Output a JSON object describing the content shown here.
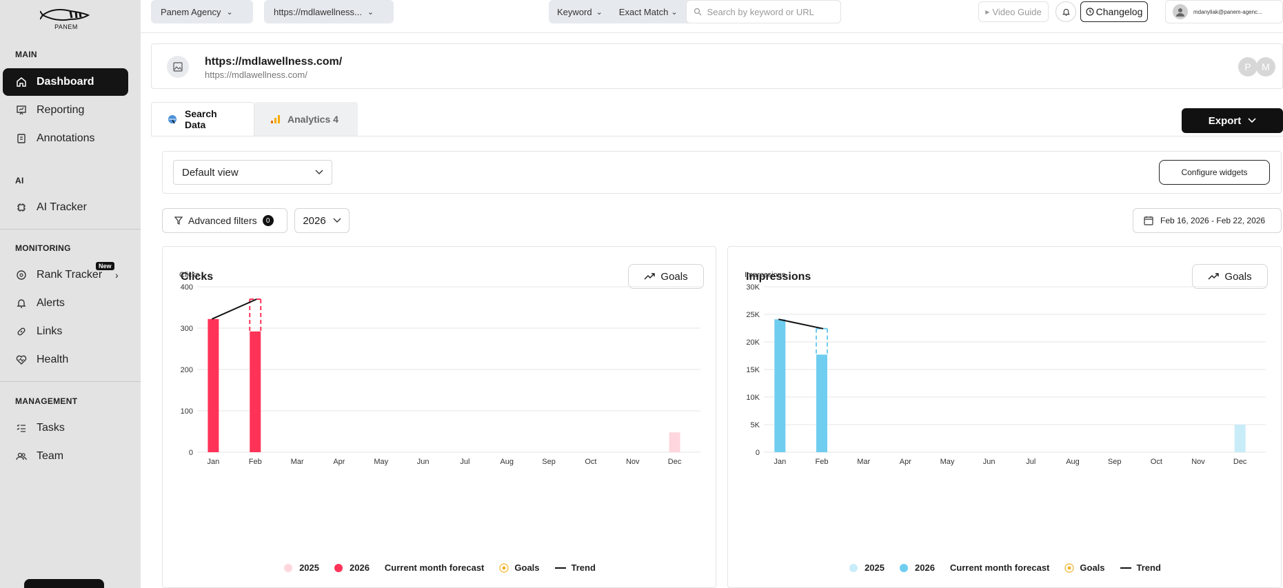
{
  "sidebar": {
    "logo_text": "PANEM",
    "sections": {
      "main": "MAIN",
      "ai": "AI",
      "monitoring": "MONITORING",
      "management": "MANAGEMENT"
    },
    "items": {
      "dashboard": "Dashboard",
      "reporting": "Reporting",
      "annotations": "Annotations",
      "ai_tracker": "AI Tracker",
      "rank_tracker": "Rank Tracker",
      "alerts": "Alerts",
      "links": "Links",
      "health": "Health",
      "tasks": "Tasks",
      "team": "Team"
    },
    "new_badge": "New"
  },
  "topbar": {
    "agency": "Panem Agency",
    "site_select": "https://mdlawellness...",
    "keyword_mode": "Keyword",
    "match_mode": "Exact Match",
    "search_placeholder": "Search by keyword or URL",
    "video_guide": "Video Guide",
    "changelog": "Changelog",
    "user_email": "mdanyliak@panem-agenc..."
  },
  "site": {
    "title": "https://mdlawellness.com/",
    "subtitle": "https://mdlawellness.com/",
    "initials": [
      "P",
      "M"
    ]
  },
  "tabs": {
    "search_data": "Search Data",
    "analytics": "Analytics 4"
  },
  "export_label": "Export",
  "view_select": "Default view",
  "configure_widgets": "Configure widgets",
  "filters": {
    "advanced_label": "Advanced filters",
    "advanced_count": "0",
    "year": "2026",
    "date_range": "Feb 16, 2026 - Feb 22, 2026"
  },
  "colors": {
    "clicks_2026": "#ff3358",
    "clicks_2025": "#ffd6de",
    "impressions_2026": "#6fcdf0",
    "impressions_2025": "#c9ecf9",
    "goals": "#f0b429"
  },
  "chart_data": [
    {
      "type": "bar",
      "title": "Clicks",
      "ylabel": "Clicks",
      "ylim": [
        0,
        400
      ],
      "yticks": [
        "0",
        "100",
        "200",
        "300",
        "400"
      ],
      "categories": [
        "Jan",
        "Feb",
        "Mar",
        "Apr",
        "May",
        "Jun",
        "Jul",
        "Aug",
        "Sep",
        "Oct",
        "Nov",
        "Dec"
      ],
      "series": [
        {
          "name": "2025",
          "values": [
            null,
            null,
            null,
            null,
            null,
            null,
            null,
            null,
            null,
            null,
            null,
            48
          ]
        },
        {
          "name": "2026",
          "values": [
            322,
            292,
            null,
            null,
            null,
            null,
            null,
            null,
            null,
            null,
            null,
            null
          ]
        }
      ],
      "forecast": {
        "month": "Feb",
        "value": 370
      },
      "trend": [
        322,
        370
      ],
      "legend": [
        "2025",
        "2026",
        "Current month forecast",
        "Goals",
        "Trend"
      ],
      "goals_label": "Goals"
    },
    {
      "type": "bar",
      "title": "Impressions",
      "ylabel": "Impressions",
      "ylim": [
        0,
        30000
      ],
      "yticks": [
        "0",
        "5K",
        "10K",
        "15K",
        "20K",
        "25K",
        "30K"
      ],
      "categories": [
        "Jan",
        "Feb",
        "Mar",
        "Apr",
        "May",
        "Jun",
        "Jul",
        "Aug",
        "Sep",
        "Oct",
        "Nov",
        "Dec"
      ],
      "series": [
        {
          "name": "2025",
          "values": [
            null,
            null,
            null,
            null,
            null,
            null,
            null,
            null,
            null,
            null,
            null,
            5000
          ]
        },
        {
          "name": "2026",
          "values": [
            24100,
            17700,
            null,
            null,
            null,
            null,
            null,
            null,
            null,
            null,
            null,
            null
          ]
        }
      ],
      "forecast": {
        "month": "Feb",
        "value": 22400
      },
      "trend": [
        24100,
        22400
      ],
      "legend": [
        "2025",
        "2026",
        "Current month forecast",
        "Goals",
        "Trend"
      ],
      "goals_label": "Goals"
    }
  ]
}
